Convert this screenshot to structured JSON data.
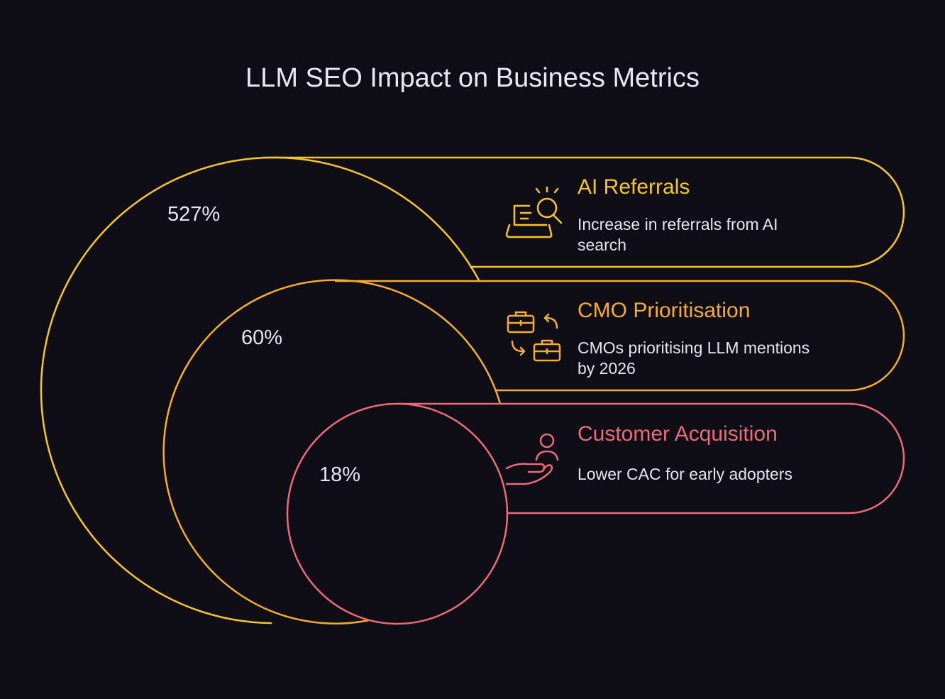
{
  "title": "LLM SEO Impact on Business Metrics",
  "colors": {
    "background": "#0f0e16",
    "title": "#e9e7f2",
    "body_text": "#e6e4ee",
    "ai_referrals": "#f7c52a",
    "cmo_prioritisation": "#f6ac2e",
    "customer_acquisition": "#ec6a79"
  },
  "metrics": [
    {
      "value": "527%",
      "title": "AI Referrals",
      "description_lines": [
        "Increase in referrals from AI",
        "search"
      ],
      "icon": "laptop-search-icon"
    },
    {
      "value": "60%",
      "title": "CMO Prioritisation",
      "description_lines": [
        "CMOs prioritising LLM mentions",
        "by 2026"
      ],
      "icon": "briefcase-swap-icon"
    },
    {
      "value": "18%",
      "title": "Customer Acquisition",
      "description_lines": [
        "Lower CAC for early adopters"
      ],
      "icon": "hand-person-icon"
    }
  ]
}
